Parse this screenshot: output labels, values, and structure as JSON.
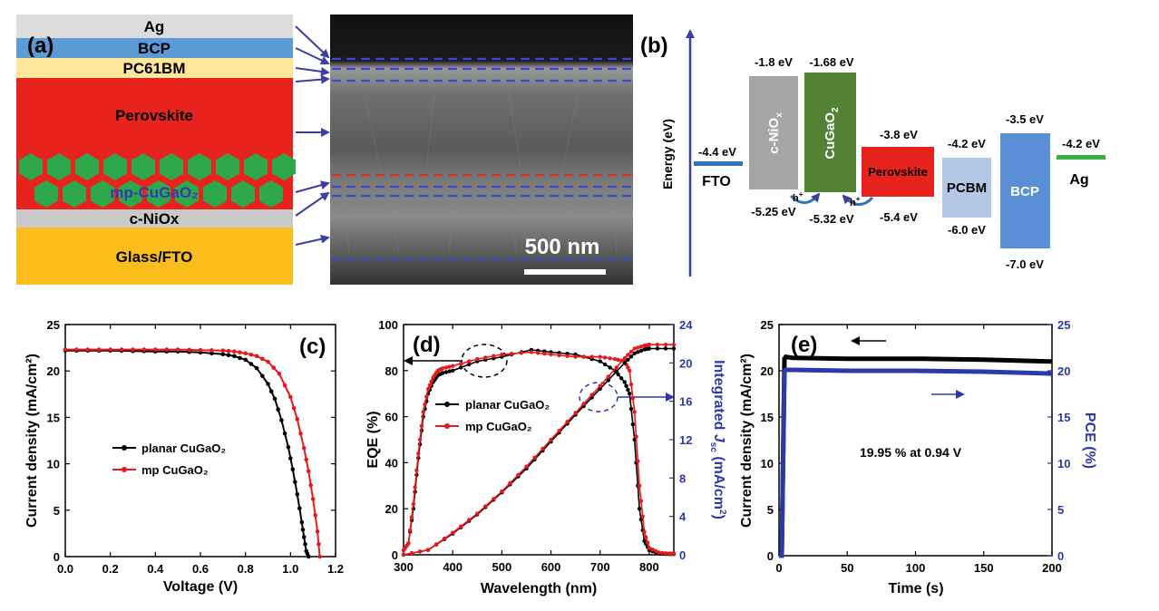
{
  "panel_a": {
    "label": "(a)",
    "layers": [
      "Ag",
      "BCP",
      "PC61BM",
      "Perovskite",
      "mp-CuGaO₂",
      "c-NiOx",
      "Glass/FTO"
    ],
    "scale_bar": "500 nm"
  },
  "panel_b": {
    "label": "(b)",
    "axis_title": "Energy (eV)",
    "materials": [
      {
        "name": "FTO",
        "wf": "-4.4 eV"
      },
      {
        "name": "c-NiO",
        "sub": "x",
        "top": "-1.8 eV",
        "bottom": "-5.25 eV"
      },
      {
        "name": "CuGaO",
        "sub": "2",
        "top": "-1.68 eV",
        "bottom": "-5.32 eV"
      },
      {
        "name": "Perovskite",
        "top": "-3.8 eV",
        "bottom": "-5.4 eV"
      },
      {
        "name": "PCBM",
        "top": "-4.2 eV",
        "bottom": "-6.0 eV"
      },
      {
        "name": "BCP",
        "top": "-3.5 eV",
        "bottom": "-7.0 eV"
      },
      {
        "name": "Ag",
        "wf": "-4.2 eV"
      }
    ],
    "hole_label": "h"
  },
  "chart_data": [
    {
      "type": "line",
      "panel": "(c)",
      "xlabel": "Voltage (V)",
      "ylabel": "Current density (mA/cm²)",
      "xlim": [
        0.0,
        1.2
      ],
      "ylim": [
        0,
        25
      ],
      "xticks": [
        "0.0",
        "0.2",
        "0.4",
        "0.6",
        "0.8",
        "1.0",
        "1.2"
      ],
      "yticks": [
        "0",
        "5",
        "10",
        "15",
        "20",
        "25"
      ],
      "legend_position": "middle-left",
      "series": [
        {
          "name": "planar CuGaO₂",
          "color": "#000000",
          "x": [
            0.0,
            0.1,
            0.2,
            0.3,
            0.4,
            0.5,
            0.6,
            0.7,
            0.75,
            0.8,
            0.85,
            0.9,
            0.93,
            0.96,
            0.99,
            1.01,
            1.03,
            1.05,
            1.06,
            1.07,
            1.08
          ],
          "y": [
            22.2,
            22.2,
            22.2,
            22.15,
            22.1,
            22.1,
            22.0,
            21.8,
            21.6,
            21.2,
            20.3,
            18.6,
            17.0,
            14.7,
            11.8,
            9.4,
            6.7,
            3.7,
            2.1,
            0.6,
            0.0
          ]
        },
        {
          "name": "mp CuGaO₂",
          "color": "#e8191c",
          "x": [
            0.0,
            0.1,
            0.2,
            0.3,
            0.4,
            0.5,
            0.6,
            0.7,
            0.75,
            0.8,
            0.85,
            0.9,
            0.95,
            1.0,
            1.03,
            1.06,
            1.08,
            1.1,
            1.12,
            1.13
          ],
          "y": [
            22.3,
            22.3,
            22.3,
            22.3,
            22.3,
            22.3,
            22.25,
            22.2,
            22.1,
            21.9,
            21.6,
            21.0,
            19.7,
            17.2,
            14.8,
            11.7,
            9.2,
            6.2,
            2.7,
            0.0
          ]
        }
      ]
    },
    {
      "type": "line",
      "panel": "(d)",
      "xlabel": "Wavelength (nm)",
      "ylabel": "EQE (%)",
      "y2label": "Integrated J_sc (mA/cm²)",
      "xlim": [
        300,
        850
      ],
      "ylim": [
        0,
        100
      ],
      "y2lim": [
        0,
        24
      ],
      "xticks": [
        "300",
        "400",
        "500",
        "600",
        "700",
        "800"
      ],
      "yticks": [
        "0",
        "20",
        "40",
        "60",
        "80",
        "100"
      ],
      "y2ticks": [
        "0",
        "4",
        "8",
        "12",
        "16",
        "20",
        "24"
      ],
      "legend_position": "middle-left",
      "series": [
        {
          "name": "planar CuGaO₂",
          "color": "#000000",
          "axis": "left",
          "x": [
            300,
            310,
            320,
            330,
            340,
            350,
            360,
            370,
            380,
            400,
            450,
            500,
            560,
            600,
            650,
            700,
            730,
            750,
            760,
            770,
            780,
            790,
            800,
            820,
            840,
            850
          ],
          "y": [
            2,
            5,
            20,
            42,
            60,
            70,
            75,
            78,
            79,
            80,
            84,
            86,
            89,
            88,
            87,
            84,
            80,
            75,
            70,
            50,
            20,
            6,
            2,
            0.5,
            0.3,
            0.3
          ]
        },
        {
          "name": "mp CuGaO₂",
          "color": "#e8191c",
          "axis": "left",
          "x": [
            300,
            310,
            320,
            330,
            340,
            350,
            360,
            370,
            380,
            400,
            450,
            500,
            560,
            600,
            650,
            700,
            730,
            750,
            760,
            770,
            780,
            790,
            800,
            820,
            840,
            850
          ],
          "y": [
            2,
            5,
            22,
            44,
            62,
            72,
            77,
            80,
            81,
            82,
            85,
            87,
            88,
            87,
            86,
            86,
            85,
            84,
            80,
            62,
            30,
            10,
            3,
            1,
            0.5,
            0.5
          ]
        },
        {
          "name": "planar CuGaO₂ integrated",
          "color": "#000000",
          "axis": "right",
          "x": [
            300,
            350,
            400,
            450,
            500,
            550,
            600,
            650,
            700,
            750,
            770,
            790,
            800,
            850
          ],
          "y": [
            0,
            0.5,
            2.2,
            4.2,
            6.5,
            9.0,
            11.8,
            14.6,
            17.3,
            20.0,
            21.0,
            21.4,
            21.5,
            21.5
          ]
        },
        {
          "name": "mp CuGaO₂ integrated",
          "color": "#e8191c",
          "axis": "right",
          "x": [
            300,
            350,
            400,
            450,
            500,
            550,
            600,
            650,
            700,
            750,
            770,
            790,
            800,
            850
          ],
          "y": [
            0,
            0.5,
            2.3,
            4.3,
            6.6,
            9.2,
            12.0,
            14.8,
            17.6,
            20.5,
            21.5,
            21.8,
            21.9,
            21.9
          ]
        }
      ]
    },
    {
      "type": "line",
      "panel": "(e)",
      "xlabel": "Time (s)",
      "ylabel": "Current density (mA/cm²)",
      "y2label": "PCE (%)",
      "xlim": [
        0,
        200
      ],
      "ylim": [
        0,
        25
      ],
      "y2lim": [
        0,
        25
      ],
      "xticks": [
        "0",
        "50",
        "100",
        "150",
        "200"
      ],
      "yticks": [
        "0",
        "5",
        "10",
        "15",
        "20",
        "25"
      ],
      "y2ticks": [
        "0",
        "5",
        "10",
        "15",
        "20",
        "25"
      ],
      "annotation": "19.95 % at 0.94 V",
      "series": [
        {
          "name": "Current density",
          "color": "#000000",
          "axis": "left",
          "x": [
            0,
            2,
            4,
            5,
            10,
            50,
            100,
            150,
            200
          ],
          "y": [
            0,
            0,
            21.3,
            21.5,
            21.4,
            21.3,
            21.3,
            21.2,
            21.0
          ]
        },
        {
          "name": "PCE",
          "color": "#2b3aa8",
          "axis": "right",
          "x": [
            0,
            2,
            4,
            5,
            10,
            50,
            100,
            150,
            200
          ],
          "y": [
            0,
            0,
            20.0,
            20.1,
            20.1,
            20.0,
            20.0,
            19.9,
            19.7
          ]
        }
      ]
    }
  ]
}
